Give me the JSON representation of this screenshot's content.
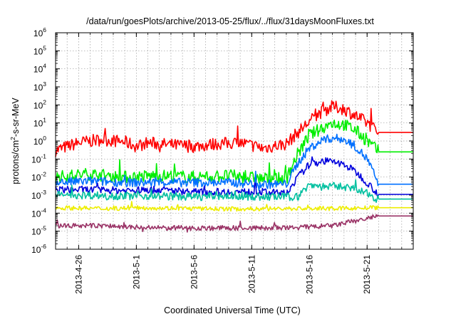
{
  "chart_data": {
    "type": "line",
    "title": "/data/run/goesPlots/archive/2013-05-25/flux/../flux/31daysMoonFluxes.txt",
    "xlabel": "Coordinated Universal Time (UTC)",
    "ylabel": "protons/cm^2-s-sr-MeV",
    "ylabel_parts": {
      "before": "protons/cm",
      "sup": "2",
      "after": "-s-sr-MeV"
    },
    "x_axis": {
      "type": "date",
      "range": [
        "2013-04-24",
        "2013-05-25"
      ],
      "ticks": [
        "2013-4-26",
        "2013-5-1",
        "2013-5-6",
        "2013-5-11",
        "2013-5-16",
        "2013-5-21"
      ],
      "tick_dates": [
        "2013-04-26",
        "2013-05-01",
        "2013-05-06",
        "2013-05-11",
        "2013-05-16",
        "2013-05-21"
      ]
    },
    "y_axis": {
      "scale": "log",
      "range": [
        1e-06,
        1000000.0
      ],
      "tick_labels": [
        {
          "base": "10",
          "exp": "6"
        },
        {
          "base": "10",
          "exp": "5"
        },
        {
          "base": "10",
          "exp": "4"
        },
        {
          "base": "10",
          "exp": "3"
        },
        {
          "base": "10",
          "exp": "2"
        },
        {
          "base": "10",
          "exp": "1"
        },
        {
          "base": "10",
          "exp": "0"
        },
        {
          "base": "10",
          "exp": "-1"
        },
        {
          "base": "10",
          "exp": "-2"
        },
        {
          "base": "10",
          "exp": "-3"
        },
        {
          "base": "10",
          "exp": "-4"
        },
        {
          "base": "10",
          "exp": "-5"
        },
        {
          "base": "10",
          "exp": "-6"
        }
      ]
    },
    "grid": true,
    "series": [
      {
        "color": "#ff0000",
        "values": [
          {
            "x": "2013-04-24",
            "y": 0.3
          },
          {
            "x": "2013-04-26",
            "y": 0.8
          },
          {
            "x": "2013-04-28",
            "y": 1.2
          },
          {
            "x": "2013-04-30",
            "y": 0.9
          },
          {
            "x": "2013-05-01",
            "y": 0.5
          },
          {
            "x": "2013-05-02",
            "y": 0.8
          },
          {
            "x": "2013-05-04",
            "y": 0.6
          },
          {
            "x": "2013-05-06",
            "y": 0.5
          },
          {
            "x": "2013-05-08",
            "y": 0.7
          },
          {
            "x": "2013-05-10",
            "y": 0.8
          },
          {
            "x": "2013-05-12",
            "y": 0.4
          },
          {
            "x": "2013-05-14",
            "y": 0.7
          },
          {
            "x": "2013-05-15",
            "y": 3
          },
          {
            "x": "2013-05-16",
            "y": 12
          },
          {
            "x": "2013-05-17",
            "y": 40
          },
          {
            "x": "2013-05-18",
            "y": 80
          },
          {
            "x": "2013-05-19",
            "y": 60
          },
          {
            "x": "2013-05-20",
            "y": 25
          },
          {
            "x": "2013-05-21",
            "y": 10
          },
          {
            "x": "2013-05-22",
            "y": 3
          },
          {
            "x": "2013-05-25",
            "y": 3
          }
        ]
      },
      {
        "color": "#00ee00",
        "values": [
          {
            "x": "2013-04-24",
            "y": 0.01
          },
          {
            "x": "2013-04-27",
            "y": 0.015
          },
          {
            "x": "2013-04-30",
            "y": 0.01
          },
          {
            "x": "2013-05-03",
            "y": 0.012
          },
          {
            "x": "2013-05-06",
            "y": 0.01
          },
          {
            "x": "2013-05-09",
            "y": 0.012
          },
          {
            "x": "2013-05-12",
            "y": 0.008
          },
          {
            "x": "2013-05-14",
            "y": 0.008
          },
          {
            "x": "2013-05-15",
            "y": 0.2
          },
          {
            "x": "2013-05-16",
            "y": 2
          },
          {
            "x": "2013-05-17",
            "y": 5
          },
          {
            "x": "2013-05-18",
            "y": 10
          },
          {
            "x": "2013-05-19",
            "y": 8
          },
          {
            "x": "2013-05-20",
            "y": 4
          },
          {
            "x": "2013-05-21",
            "y": 1
          },
          {
            "x": "2013-05-22",
            "y": 0.25
          },
          {
            "x": "2013-05-25",
            "y": 0.25
          }
        ]
      },
      {
        "color": "#0070ff",
        "values": [
          {
            "x": "2013-04-24",
            "y": 0.005
          },
          {
            "x": "2013-04-27",
            "y": 0.006
          },
          {
            "x": "2013-04-30",
            "y": 0.005
          },
          {
            "x": "2013-05-03",
            "y": 0.005
          },
          {
            "x": "2013-05-06",
            "y": 0.005
          },
          {
            "x": "2013-05-09",
            "y": 0.005
          },
          {
            "x": "2013-05-12",
            "y": 0.004
          },
          {
            "x": "2013-05-14",
            "y": 0.004
          },
          {
            "x": "2013-05-15",
            "y": 0.06
          },
          {
            "x": "2013-05-16",
            "y": 0.4
          },
          {
            "x": "2013-05-17",
            "y": 1
          },
          {
            "x": "2013-05-18",
            "y": 1.5
          },
          {
            "x": "2013-05-19",
            "y": 1.2
          },
          {
            "x": "2013-05-20",
            "y": 0.5
          },
          {
            "x": "2013-05-21",
            "y": 0.1
          },
          {
            "x": "2013-05-22",
            "y": 0.004
          },
          {
            "x": "2013-05-25",
            "y": 0.004
          }
        ]
      },
      {
        "color": "#0000dd",
        "values": [
          {
            "x": "2013-04-24",
            "y": 0.002
          },
          {
            "x": "2013-04-27",
            "y": 0.002
          },
          {
            "x": "2013-04-30",
            "y": 0.0018
          },
          {
            "x": "2013-05-03",
            "y": 0.002
          },
          {
            "x": "2013-05-06",
            "y": 0.0015
          },
          {
            "x": "2013-05-09",
            "y": 0.0015
          },
          {
            "x": "2013-05-12",
            "y": 0.0015
          },
          {
            "x": "2013-05-14",
            "y": 0.0012
          },
          {
            "x": "2013-05-15",
            "y": 0.01
          },
          {
            "x": "2013-05-16",
            "y": 0.05
          },
          {
            "x": "2013-05-17",
            "y": 0.08
          },
          {
            "x": "2013-05-18",
            "y": 0.07
          },
          {
            "x": "2013-05-19",
            "y": 0.05
          },
          {
            "x": "2013-05-20",
            "y": 0.02
          },
          {
            "x": "2013-05-21",
            "y": 0.005
          },
          {
            "x": "2013-05-22",
            "y": 0.0011
          },
          {
            "x": "2013-05-25",
            "y": 0.0011
          }
        ]
      },
      {
        "color": "#00c0a0",
        "values": [
          {
            "x": "2013-04-24",
            "y": 0.001
          },
          {
            "x": "2013-04-27",
            "y": 0.001
          },
          {
            "x": "2013-04-30",
            "y": 0.0009
          },
          {
            "x": "2013-05-03",
            "y": 0.0009
          },
          {
            "x": "2013-05-06",
            "y": 0.0008
          },
          {
            "x": "2013-05-09",
            "y": 0.0009
          },
          {
            "x": "2013-05-12",
            "y": 0.0008
          },
          {
            "x": "2013-05-14",
            "y": 0.0008
          },
          {
            "x": "2013-05-15",
            "y": 0.0008
          },
          {
            "x": "2013-05-16",
            "y": 0.004
          },
          {
            "x": "2013-05-17",
            "y": 0.003
          },
          {
            "x": "2013-05-18",
            "y": 0.003
          },
          {
            "x": "2013-05-19",
            "y": 0.003
          },
          {
            "x": "2013-05-20",
            "y": 0.002
          },
          {
            "x": "2013-05-21",
            "y": 0.0012
          },
          {
            "x": "2013-05-22",
            "y": 0.0006
          },
          {
            "x": "2013-05-25",
            "y": 0.0006
          }
        ]
      },
      {
        "color": "#eeee00",
        "values": [
          {
            "x": "2013-04-24",
            "y": 0.0002
          },
          {
            "x": "2013-04-28",
            "y": 0.00018
          },
          {
            "x": "2013-05-02",
            "y": 0.0002
          },
          {
            "x": "2013-05-06",
            "y": 0.00018
          },
          {
            "x": "2013-05-10",
            "y": 0.00017
          },
          {
            "x": "2013-05-14",
            "y": 0.00018
          },
          {
            "x": "2013-05-18",
            "y": 0.00018
          },
          {
            "x": "2013-05-22",
            "y": 0.0002
          },
          {
            "x": "2013-05-25",
            "y": 0.0002
          }
        ]
      },
      {
        "color": "#9a3366",
        "values": [
          {
            "x": "2013-04-24",
            "y": 2e-05
          },
          {
            "x": "2013-04-28",
            "y": 2e-05
          },
          {
            "x": "2013-05-02",
            "y": 1.5e-05
          },
          {
            "x": "2013-05-06",
            "y": 1.5e-05
          },
          {
            "x": "2013-05-10",
            "y": 1.5e-05
          },
          {
            "x": "2013-05-14",
            "y": 1.5e-05
          },
          {
            "x": "2013-05-18",
            "y": 2e-05
          },
          {
            "x": "2013-05-22",
            "y": 7e-05
          },
          {
            "x": "2013-05-25",
            "y": 7e-05
          }
        ]
      }
    ]
  }
}
